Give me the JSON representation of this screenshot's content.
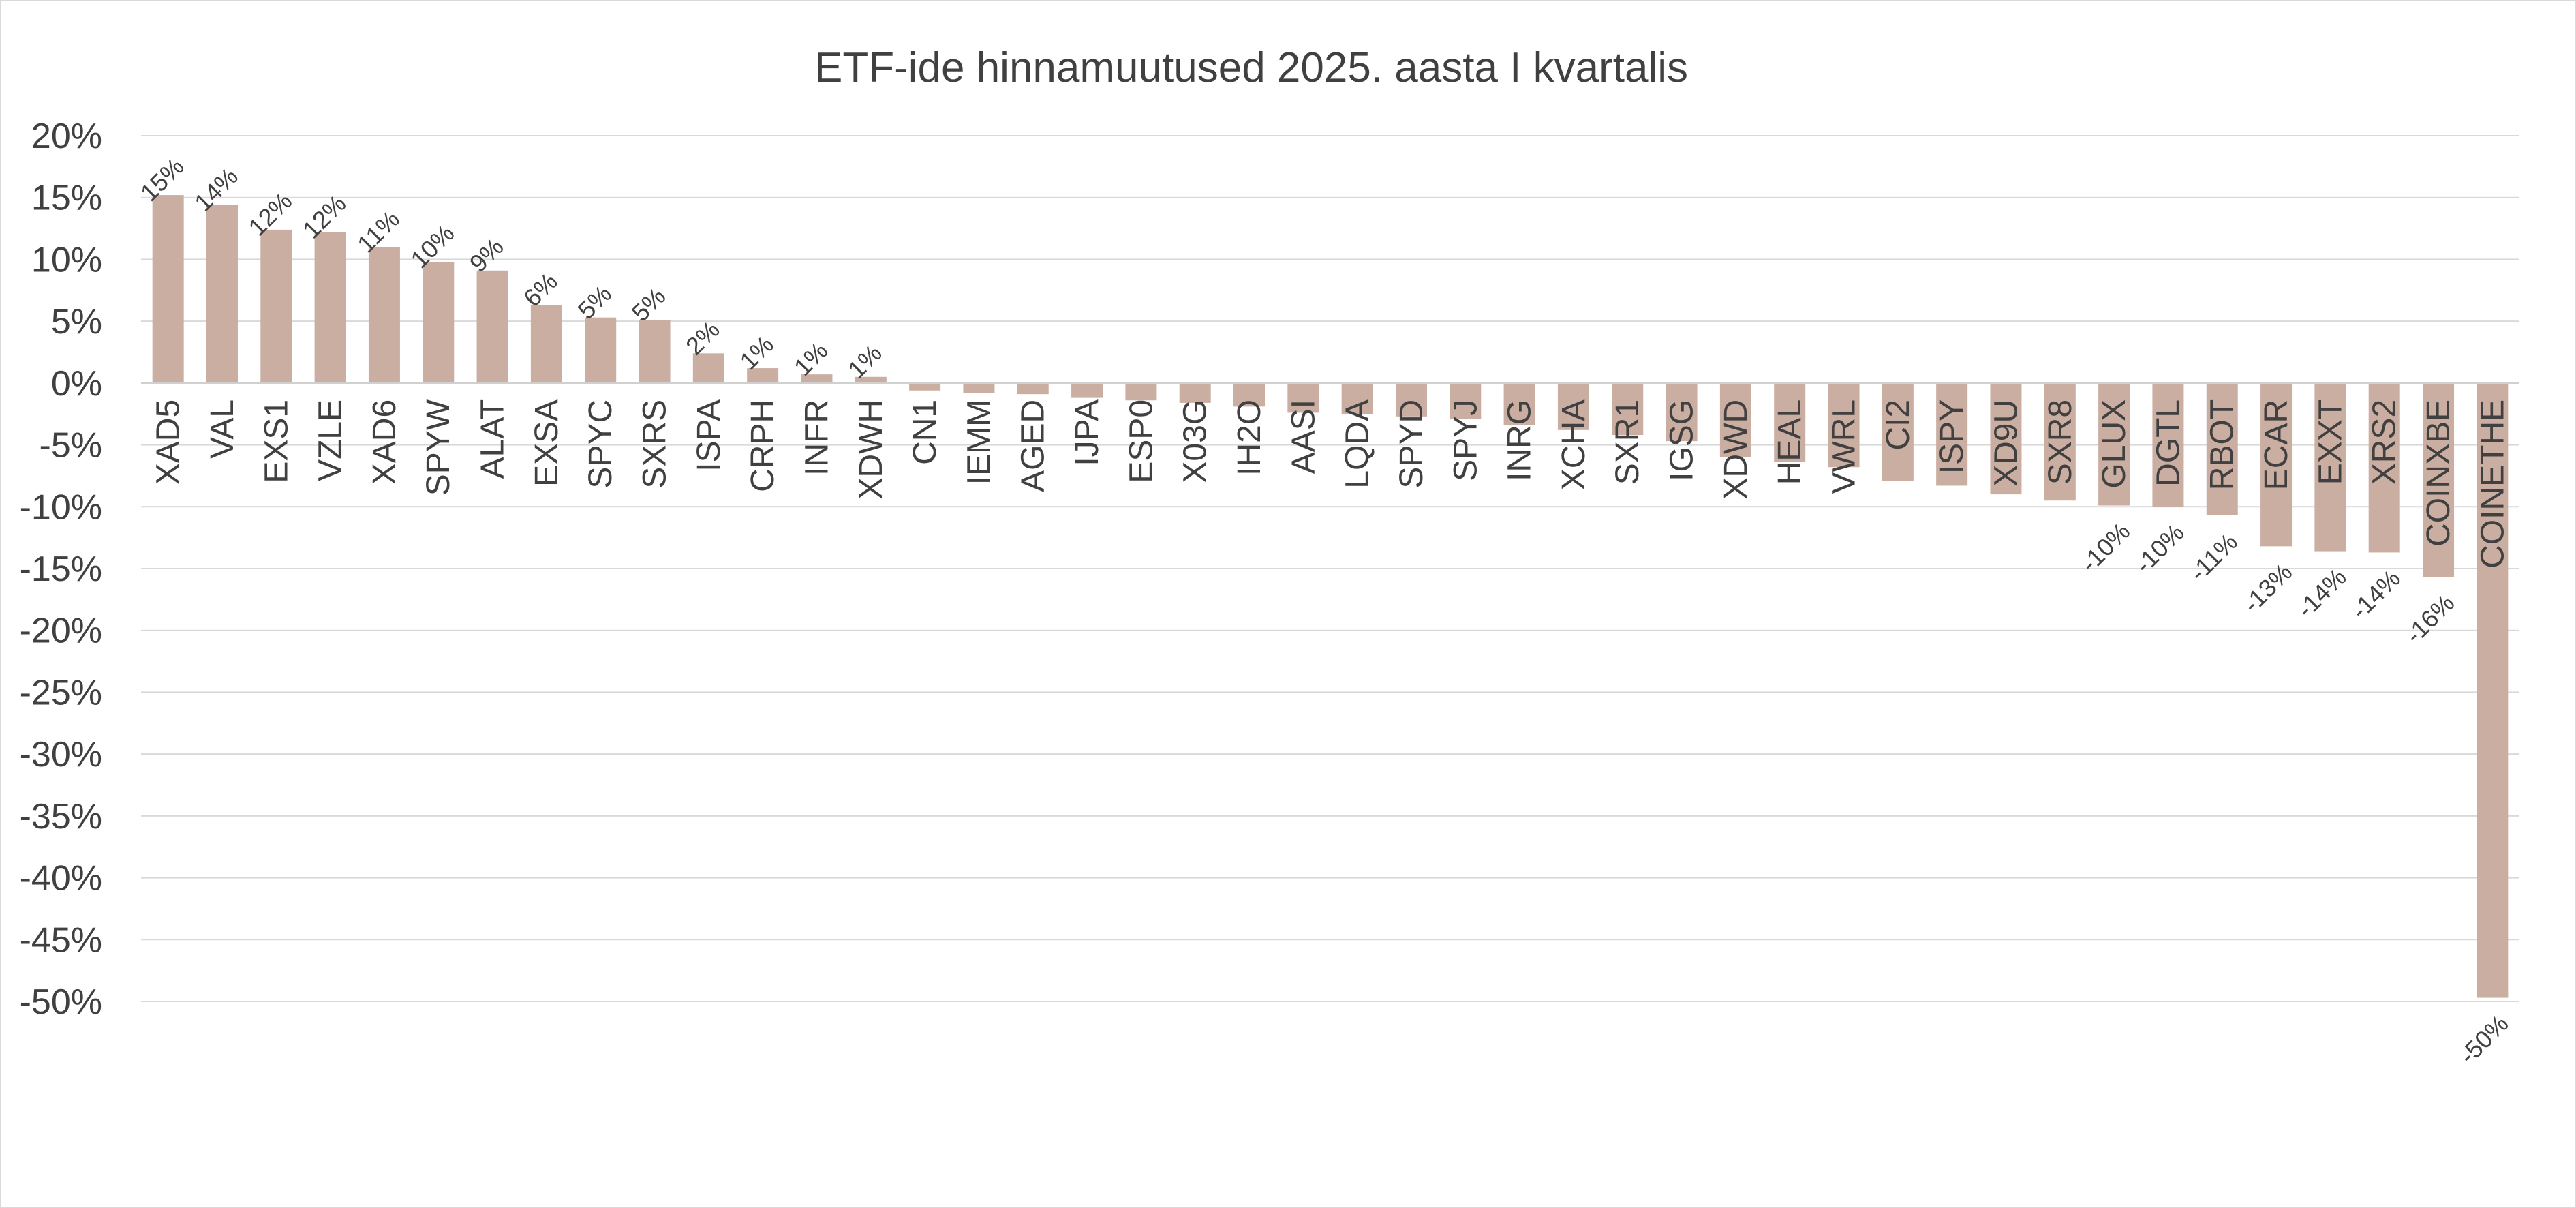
{
  "chart_data": {
    "type": "bar",
    "title": "ETF-ide hinnamuutused 2025. aasta I kvartalis",
    "xlabel": "",
    "ylabel": "",
    "ylim": [
      -0.5,
      0.2
    ],
    "y_tick_values": [
      0.2,
      0.15,
      0.1,
      0.05,
      0,
      -0.05,
      -0.1,
      -0.15,
      -0.2,
      -0.25,
      -0.3,
      -0.35,
      -0.4,
      -0.45,
      -0.5
    ],
    "y_tick_labels": [
      "20%",
      "15%",
      "10%",
      "5%",
      "0%",
      "-5%",
      "-10%",
      "-15%",
      "-20%",
      "-25%",
      "-30%",
      "-35%",
      "-40%",
      "-45%",
      "-50%"
    ],
    "grid": true,
    "bar_color": "#cbaea2",
    "categories": [
      "XAD5",
      "VAL",
      "EXS1",
      "VZLE",
      "XAD6",
      "SPYW",
      "ALAT",
      "EXSA",
      "SPYC",
      "SXRS",
      "ISPA",
      "CRPH",
      "INFR",
      "XDWH",
      "CN1",
      "IEMM",
      "AGED",
      "IJPA",
      "ESP0",
      "X03G",
      "IH2O",
      "AASI",
      "LQDA",
      "SPYD",
      "SPYJ",
      "INRG",
      "XCHA",
      "SXR1",
      "IGSG",
      "XDWD",
      "HEAL",
      "VWRL",
      "CI2",
      "ISPY",
      "XD9U",
      "SXR8",
      "GLUX",
      "DGTL",
      "RBOT",
      "ECAR",
      "EXXT",
      "XRS2",
      "COINXBE",
      "COINETHE"
    ],
    "values": [
      0.152,
      0.144,
      0.124,
      0.122,
      0.11,
      0.098,
      0.091,
      0.063,
      0.053,
      0.051,
      0.024,
      0.012,
      0.007,
      0.005,
      -0.006,
      -0.008,
      -0.009,
      -0.012,
      -0.014,
      -0.016,
      -0.019,
      -0.024,
      -0.025,
      -0.027,
      -0.029,
      -0.034,
      -0.038,
      -0.042,
      -0.047,
      -0.06,
      -0.064,
      -0.068,
      -0.079,
      -0.083,
      -0.09,
      -0.095,
      -0.099,
      -0.1,
      -0.107,
      -0.132,
      -0.136,
      -0.137,
      -0.157,
      -0.497
    ],
    "data_labels": [
      "15%",
      "14%",
      "12%",
      "12%",
      "11%",
      "10%",
      "9%",
      "6%",
      "5%",
      "5%",
      "2%",
      "1%",
      "1%",
      "1%",
      "",
      "",
      "",
      "",
      "",
      "",
      "",
      "",
      "",
      "",
      "",
      "",
      "",
      "",
      "",
      "",
      "",
      "",
      "",
      "",
      "",
      "",
      "-10%",
      "-10%",
      "-11%",
      "-13%",
      "-14%",
      "-14%",
      "-16%",
      "-50%"
    ]
  }
}
